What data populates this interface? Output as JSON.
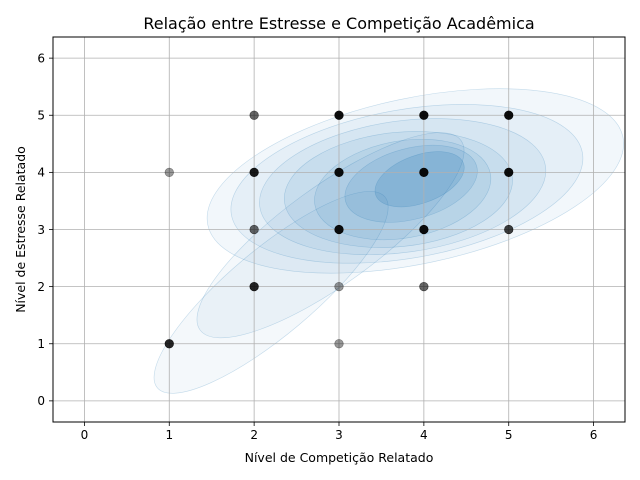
{
  "chart_data": {
    "type": "scatter",
    "title": "Relação entre Estresse e Competição Acadêmica",
    "xlabel": "Nível de Competição Relatado",
    "ylabel": "Nível de Estresse Relatado",
    "xlim": [
      -0.37,
      6.37
    ],
    "ylim": [
      -0.37,
      6.37
    ],
    "xticks": [
      0,
      1,
      2,
      3,
      4,
      5,
      6
    ],
    "yticks": [
      0,
      1,
      2,
      3,
      4,
      5,
      6
    ],
    "grid": true,
    "density_overlay": true,
    "colors": {
      "point": "#000000",
      "density": "#1f77b4",
      "grid": "#b0b0b0"
    },
    "points": [
      {
        "x": 1,
        "y": 1,
        "alpha": 0.85
      },
      {
        "x": 1,
        "y": 4,
        "alpha": 0.4
      },
      {
        "x": 2,
        "y": 2,
        "alpha": 0.85
      },
      {
        "x": 2,
        "y": 3,
        "alpha": 0.6
      },
      {
        "x": 2,
        "y": 4,
        "alpha": 0.9
      },
      {
        "x": 2,
        "y": 5,
        "alpha": 0.6
      },
      {
        "x": 3,
        "y": 1,
        "alpha": 0.4
      },
      {
        "x": 3,
        "y": 2,
        "alpha": 0.4
      },
      {
        "x": 3,
        "y": 3,
        "alpha": 0.95
      },
      {
        "x": 3,
        "y": 4,
        "alpha": 0.95
      },
      {
        "x": 3,
        "y": 5,
        "alpha": 0.95
      },
      {
        "x": 4,
        "y": 2,
        "alpha": 0.6
      },
      {
        "x": 4,
        "y": 3,
        "alpha": 0.95
      },
      {
        "x": 4,
        "y": 4,
        "alpha": 0.95
      },
      {
        "x": 4,
        "y": 5,
        "alpha": 0.95
      },
      {
        "x": 5,
        "y": 3,
        "alpha": 0.75
      },
      {
        "x": 5,
        "y": 4,
        "alpha": 0.95
      },
      {
        "x": 5,
        "y": 5,
        "alpha": 0.95
      }
    ]
  }
}
